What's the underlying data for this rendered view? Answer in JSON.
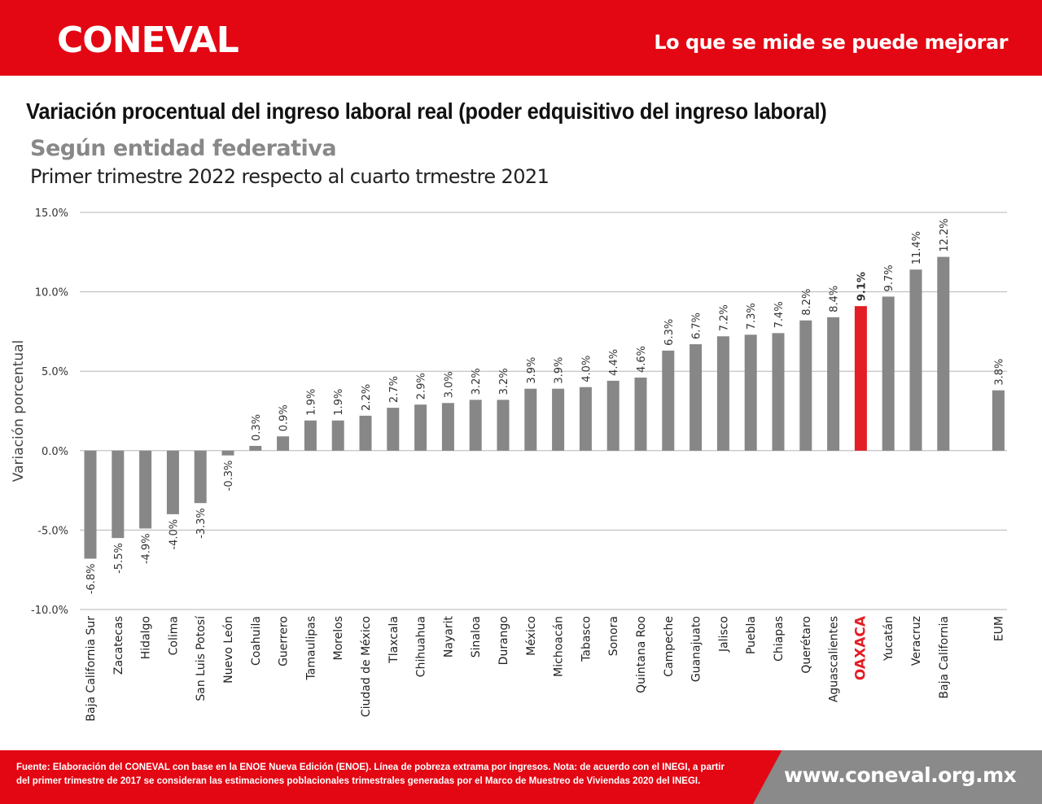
{
  "header": {
    "logo": "CONEVAL",
    "slogan": "Lo que se mide se puede mejorar"
  },
  "chart_data": {
    "type": "bar",
    "title": "Variación procentual del ingreso laboral real (poder edquisitivo del ingreso laboral)",
    "subtitle": "Según entidad federativa",
    "subtitle2": "Primer trimestre 2022 respecto al cuarto trmestre 2021",
    "ylabel": "Variación porcentual",
    "ylim": [
      -10,
      15
    ],
    "yticks": [
      "-10.0%",
      "-5.0%",
      "0.0%",
      "5.0%",
      "10.0%",
      "15.0%"
    ],
    "grid": true,
    "categories": [
      "Baja California Sur",
      "Zacatecas",
      "Hidalgo",
      "Colima",
      "San Luis Potosí",
      "Nuevo León",
      "Coahuila",
      "Guerrero",
      "Tamaulipas",
      "Morelos",
      "Ciudad de México",
      "Tlaxcala",
      "Chihuahua",
      "Nayarit",
      "Sinaloa",
      "Durango",
      "México",
      "Michoacán",
      "Tabasco",
      "Sonora",
      "Quintana Roo",
      "Campeche",
      "Guanajuato",
      "Jalisco",
      "Puebla",
      "Chiapas",
      "Querétaro",
      "Aguascalientes",
      "OAXACA",
      "Yucatán",
      "Veracruz",
      "Baja California",
      "",
      "EUM"
    ],
    "values": [
      -6.8,
      -5.5,
      -4.9,
      -4.0,
      -3.3,
      -0.3,
      0.3,
      0.9,
      1.9,
      1.9,
      2.2,
      2.7,
      2.9,
      3.0,
      3.2,
      3.2,
      3.9,
      3.9,
      4.0,
      4.4,
      4.6,
      6.3,
      6.7,
      7.2,
      7.3,
      7.4,
      8.2,
      8.4,
      9.1,
      9.7,
      11.4,
      12.2,
      null,
      3.8
    ],
    "data_labels": [
      "-6.8%",
      "-5.5%",
      "-4.9%",
      "-4.0%",
      "-3.3%",
      "-0.3%",
      "0.3%",
      "0.9%",
      "1.9%",
      "1.9%",
      "2.2%",
      "2.7%",
      "2.9%",
      "3.0%",
      "3.2%",
      "3.2%",
      "3.9%",
      "3.9%",
      "4.0%",
      "4.4%",
      "4.6%",
      "6.3%",
      "6.7%",
      "7.2%",
      "7.3%",
      "7.4%",
      "8.2%",
      "8.4%",
      "9.1%",
      "9.7%",
      "11.4%",
      "12.2%",
      "",
      "3.8%"
    ],
    "highlight": "OAXACA",
    "colors": {
      "bar": "#878787",
      "highlight": "#e31e24",
      "grid": "#b5b5b5"
    }
  },
  "footer": {
    "note": "Fuente: Elaboración del CONEVAL con base en la ENOE Nueva Edición (ENOE). Línea de pobreza extrama por ingresos. Nota: de acuerdo con el INEGI, a partir del primer trimestre de 2017 se consideran las estimaciones poblacionales trimestrales generadas por el Marco de Muestreo de Viviendas 2020 del INEGI.",
    "url": "www.coneval.org.mx"
  }
}
